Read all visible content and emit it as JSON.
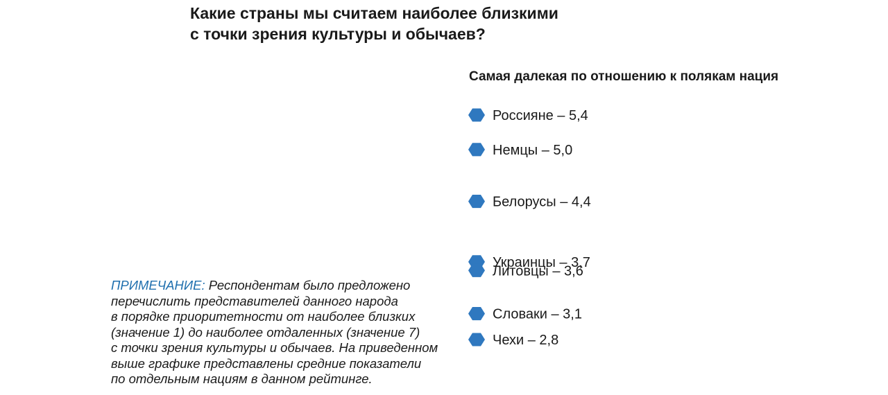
{
  "title": {
    "line1": "Какие страны мы считаем наиболее близкими",
    "line2": "с точки зрения культуры и обычаев?"
  },
  "chart_data": {
    "type": "scatter",
    "title": "Какие страны мы считаем наиболее близкими с точки зрения культуры и обычаев?",
    "subtitle": "Самая далекая по отношению к полякам нация",
    "axis": "vertical",
    "scale_direction": "higher value = placed higher",
    "marker_color": "#2f78bf",
    "marker_shape": "hexagon",
    "points": [
      {
        "label": "Россияне – 5,4",
        "value": 5.4
      },
      {
        "label": "Немцы – 5,0",
        "value": 5.0
      },
      {
        "label": "Белорусы – 4,4",
        "value": 4.4
      },
      {
        "label": "Украинцы – 3,7",
        "value": 3.7
      },
      {
        "label": "Литовцы – 3,6",
        "value": 3.6
      },
      {
        "label": "Словаки – 3,1",
        "value": 3.1
      },
      {
        "label": "Чехи – 2,8",
        "value": 2.8
      }
    ]
  },
  "note": {
    "label": "ПРИМЕЧАНИЕ:",
    "lines": [
      "Респондентам было предложено",
      "перечислить представителей данного народа",
      "в порядке приоритетности от наиболее близких",
      "(значение 1) до наиболее отдаленных (значение 7)",
      "с точки зрения культуры и обычаев. На приведенном",
      "выше графике представлены средние показатели",
      "по отдельным нациям в данном рейтинге."
    ]
  },
  "colors": {
    "accent": "#1f6fae",
    "marker": "#2f78bf",
    "text": "#1a1a1a"
  }
}
